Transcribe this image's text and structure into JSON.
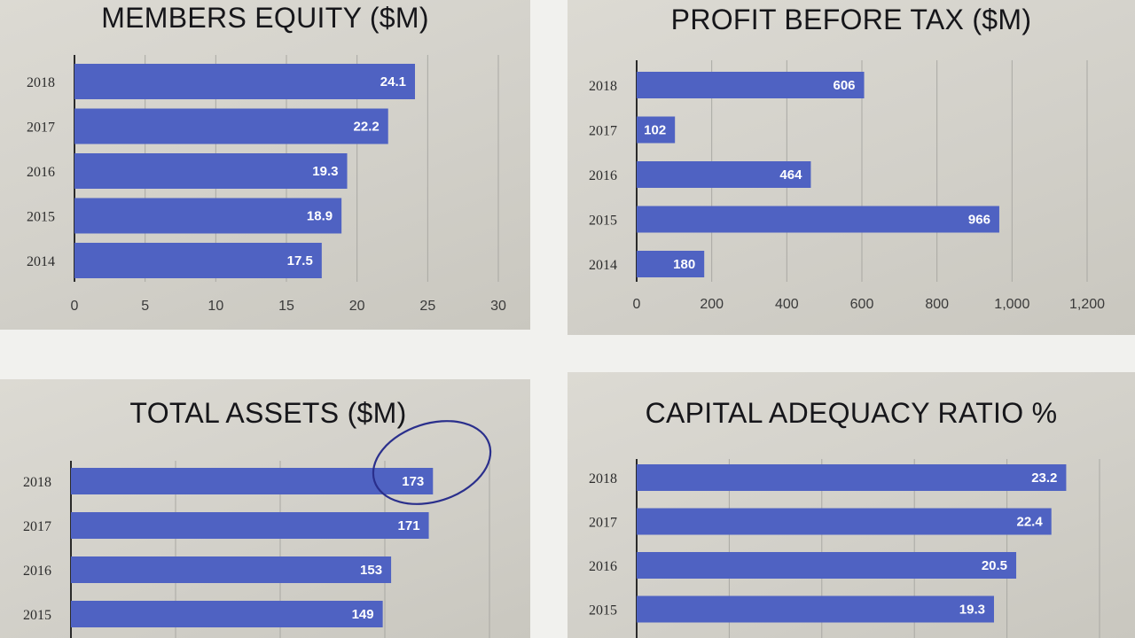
{
  "chart_data": [
    {
      "type": "bar",
      "orientation": "horizontal",
      "title": "MEMBERS EQUITY ($M)",
      "categories": [
        "2018",
        "2017",
        "2016",
        "2015",
        "2014"
      ],
      "values": [
        24.1,
        22.2,
        19.3,
        18.9,
        17.5
      ],
      "value_labels": [
        "24.1",
        "22.2",
        "19.3",
        "18.9",
        "17.5"
      ],
      "xlim": [
        0,
        30
      ],
      "xticks": [
        0,
        5,
        10,
        15,
        20,
        25,
        30
      ],
      "xtick_labels": [
        "0",
        "5",
        "10",
        "15",
        "20",
        "25",
        "30"
      ],
      "grid": true,
      "bar_color": "#4f62c2"
    },
    {
      "type": "bar",
      "orientation": "horizontal",
      "title": "PROFIT BEFORE TAX ($M)",
      "categories": [
        "2018",
        "2017",
        "2016",
        "2015",
        "2014"
      ],
      "values": [
        606,
        102,
        464,
        966,
        180
      ],
      "value_labels": [
        "606",
        "102",
        "464",
        "966",
        "180"
      ],
      "xlim": [
        0,
        1200
      ],
      "xticks": [
        0,
        200,
        400,
        600,
        800,
        1000,
        1200
      ],
      "xtick_labels": [
        "0",
        "200",
        "400",
        "600",
        "800",
        "1,000",
        "1,200"
      ],
      "grid": true,
      "bar_color": "#4f62c2"
    },
    {
      "type": "bar",
      "orientation": "horizontal",
      "title": "TOTAL ASSETS ($M)",
      "categories": [
        "2018",
        "2017",
        "2016",
        "2015"
      ],
      "values": [
        173,
        171,
        153,
        149
      ],
      "value_labels": [
        "173",
        "171",
        "153",
        "149"
      ],
      "xlim": [
        0,
        200
      ],
      "xticks": [
        0,
        50,
        100,
        150,
        200
      ],
      "grid": true,
      "bar_color": "#4f62c2"
    },
    {
      "type": "bar",
      "orientation": "horizontal",
      "title": "CAPITAL ADEQUACY RATIO %",
      "categories": [
        "2018",
        "2017",
        "2016",
        "2015"
      ],
      "values": [
        23.2,
        22.4,
        20.5,
        19.3
      ],
      "value_labels": [
        "23.2",
        "22.4",
        "20.5",
        "19.3"
      ],
      "xlim": [
        0,
        25
      ],
      "xticks": [
        0,
        5,
        10,
        15,
        20,
        25
      ],
      "grid": true,
      "bar_color": "#4f62c2"
    }
  ]
}
